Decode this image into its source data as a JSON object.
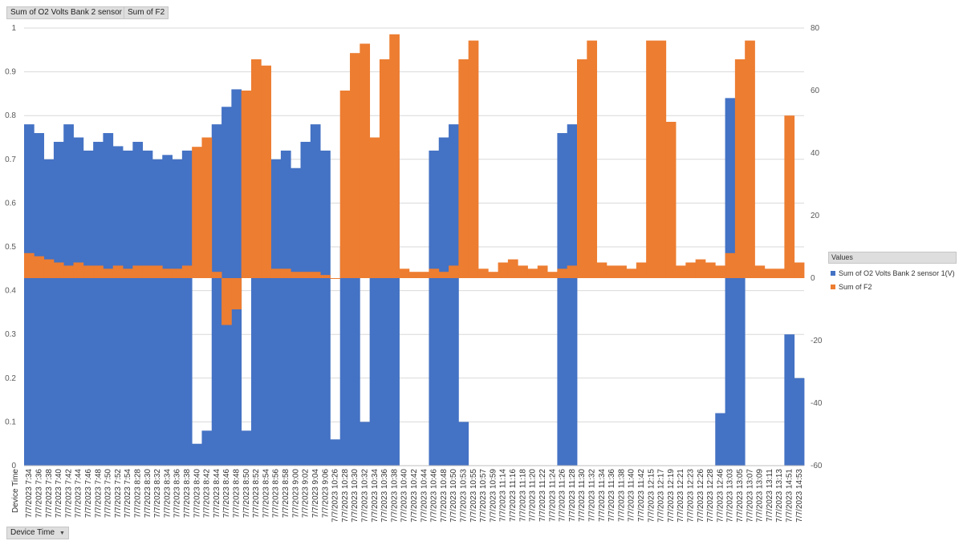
{
  "field_buttons": [
    "Sum of O2 Volts Bank 2 sensor 1(V)",
    "Sum of F2"
  ],
  "axis_field_button": {
    "label": "Device Time",
    "dropdown_icon": "triangle-down-icon"
  },
  "legend": {
    "title": "Values",
    "entries": [
      {
        "name": "Sum of O2 Volts Bank 2 sensor 1(V)",
        "color": "#4472c4"
      },
      {
        "name": "Sum of F2",
        "color": "#ed7d31"
      }
    ]
  },
  "chart_data": {
    "type": "bar",
    "xlabel": "Device Time",
    "grid": true,
    "legend_position": "right",
    "y_left": {
      "range": [
        0,
        1
      ],
      "ticks": [
        0,
        0.1,
        0.2,
        0.3,
        0.4,
        0.5,
        0.6,
        0.7,
        0.8,
        0.9,
        1
      ],
      "tick_labels": [
        "0",
        "0.1",
        "0.2",
        "0.3",
        "0.4",
        "0.5",
        "0.6",
        "0.7",
        "0.8",
        "0.9",
        "1"
      ]
    },
    "y_right": {
      "range": [
        -60,
        80
      ],
      "ticks": [
        -60,
        -40,
        -20,
        0,
        20,
        40,
        60,
        80
      ],
      "tick_labels": [
        "-60",
        "-40",
        "-20",
        "0",
        "20",
        "40",
        "60",
        "80"
      ]
    },
    "categories": [
      "7/7/2023 7:34",
      "7/7/2023 7:36",
      "7/7/2023 7:38",
      "7/7/2023 7:40",
      "7/7/2023 7:42",
      "7/7/2023 7:44",
      "7/7/2023 7:46",
      "7/7/2023 7:48",
      "7/7/2023 7:50",
      "7/7/2023 7:52",
      "7/7/2023 7:54",
      "7/7/2023 8:28",
      "7/7/2023 8:30",
      "7/7/2023 8:32",
      "7/7/2023 8:34",
      "7/7/2023 8:36",
      "7/7/2023 8:38",
      "7/7/2023 8:40",
      "7/7/2023 8:42",
      "7/7/2023 8:44",
      "7/7/2023 8:46",
      "7/7/2023 8:48",
      "7/7/2023 8:50",
      "7/7/2023 8:52",
      "7/7/2023 8:54",
      "7/7/2023 8:56",
      "7/7/2023 8:58",
      "7/7/2023 9:00",
      "7/7/2023 9:02",
      "7/7/2023 9:04",
      "7/7/2023 9:06",
      "7/7/2023 10:26",
      "7/7/2023 10:28",
      "7/7/2023 10:30",
      "7/7/2023 10:32",
      "7/7/2023 10:34",
      "7/7/2023 10:36",
      "7/7/2023 10:38",
      "7/7/2023 10:40",
      "7/7/2023 10:42",
      "7/7/2023 10:44",
      "7/7/2023 10:46",
      "7/7/2023 10:48",
      "7/7/2023 10:50",
      "7/7/2023 10:53",
      "7/7/2023 10:55",
      "7/7/2023 10:57",
      "7/7/2023 10:59",
      "7/7/2023 11:14",
      "7/7/2023 11:16",
      "7/7/2023 11:18",
      "7/7/2023 11:20",
      "7/7/2023 11:22",
      "7/7/2023 11:24",
      "7/7/2023 11:26",
      "7/7/2023 11:28",
      "7/7/2023 11:30",
      "7/7/2023 11:32",
      "7/7/2023 11:34",
      "7/7/2023 11:36",
      "7/7/2023 11:38",
      "7/7/2023 11:40",
      "7/7/2023 11:42",
      "7/7/2023 12:15",
      "7/7/2023 12:17",
      "7/7/2023 12:19",
      "7/7/2023 12:21",
      "7/7/2023 12:23",
      "7/7/2023 12:26",
      "7/7/2023 12:28",
      "7/7/2023 12:46",
      "7/7/2023 13:03",
      "7/7/2023 13:05",
      "7/7/2023 13:07",
      "7/7/2023 13:09",
      "7/7/2023 13:11",
      "7/7/2023 13:13",
      "7/7/2023 14:51",
      "7/7/2023 14:53"
    ],
    "series": [
      {
        "name": "Sum of O2 Volts Bank 2 sensor 1(V)",
        "axis": "left",
        "color": "#4472c4",
        "values": [
          0.78,
          0.76,
          0.7,
          0.74,
          0.78,
          0.75,
          0.72,
          0.74,
          0.76,
          0.73,
          0.72,
          0.74,
          0.72,
          0.7,
          0.71,
          0.7,
          0.72,
          0.05,
          0.08,
          0.78,
          0.82,
          0.86,
          0.08,
          0.72,
          0.75,
          0.7,
          0.72,
          0.68,
          0.74,
          0.78,
          0.72,
          0.06,
          0.5,
          0.55,
          0.1,
          0.65,
          0.72,
          0.72,
          0,
          0,
          0,
          0.72,
          0.75,
          0.78,
          0.1,
          0,
          0,
          0,
          0,
          0,
          0,
          0,
          0,
          0,
          0.76,
          0.78,
          0,
          0,
          0,
          0,
          0,
          0,
          0,
          0,
          0,
          0,
          0,
          0,
          0,
          0,
          0.12,
          0.84,
          0.8,
          0,
          0,
          0,
          0,
          0.3,
          0.2
        ]
      },
      {
        "name": "Sum of F2",
        "axis": "right",
        "color": "#ed7d31",
        "values": [
          8,
          7,
          6,
          5,
          4,
          5,
          4,
          4,
          3,
          4,
          3,
          4,
          4,
          4,
          3,
          3,
          4,
          42,
          45,
          2,
          -15,
          -10,
          60,
          70,
          68,
          3,
          3,
          2,
          2,
          2,
          1,
          0,
          60,
          72,
          75,
          45,
          70,
          78,
          3,
          2,
          2,
          3,
          2,
          4,
          70,
          76,
          3,
          2,
          5,
          6,
          4,
          3,
          4,
          2,
          3,
          4,
          70,
          76,
          5,
          4,
          4,
          3,
          5,
          76,
          76,
          50,
          4,
          5,
          6,
          5,
          4,
          8,
          70,
          76,
          4,
          3,
          3,
          52,
          5
        ]
      }
    ]
  }
}
